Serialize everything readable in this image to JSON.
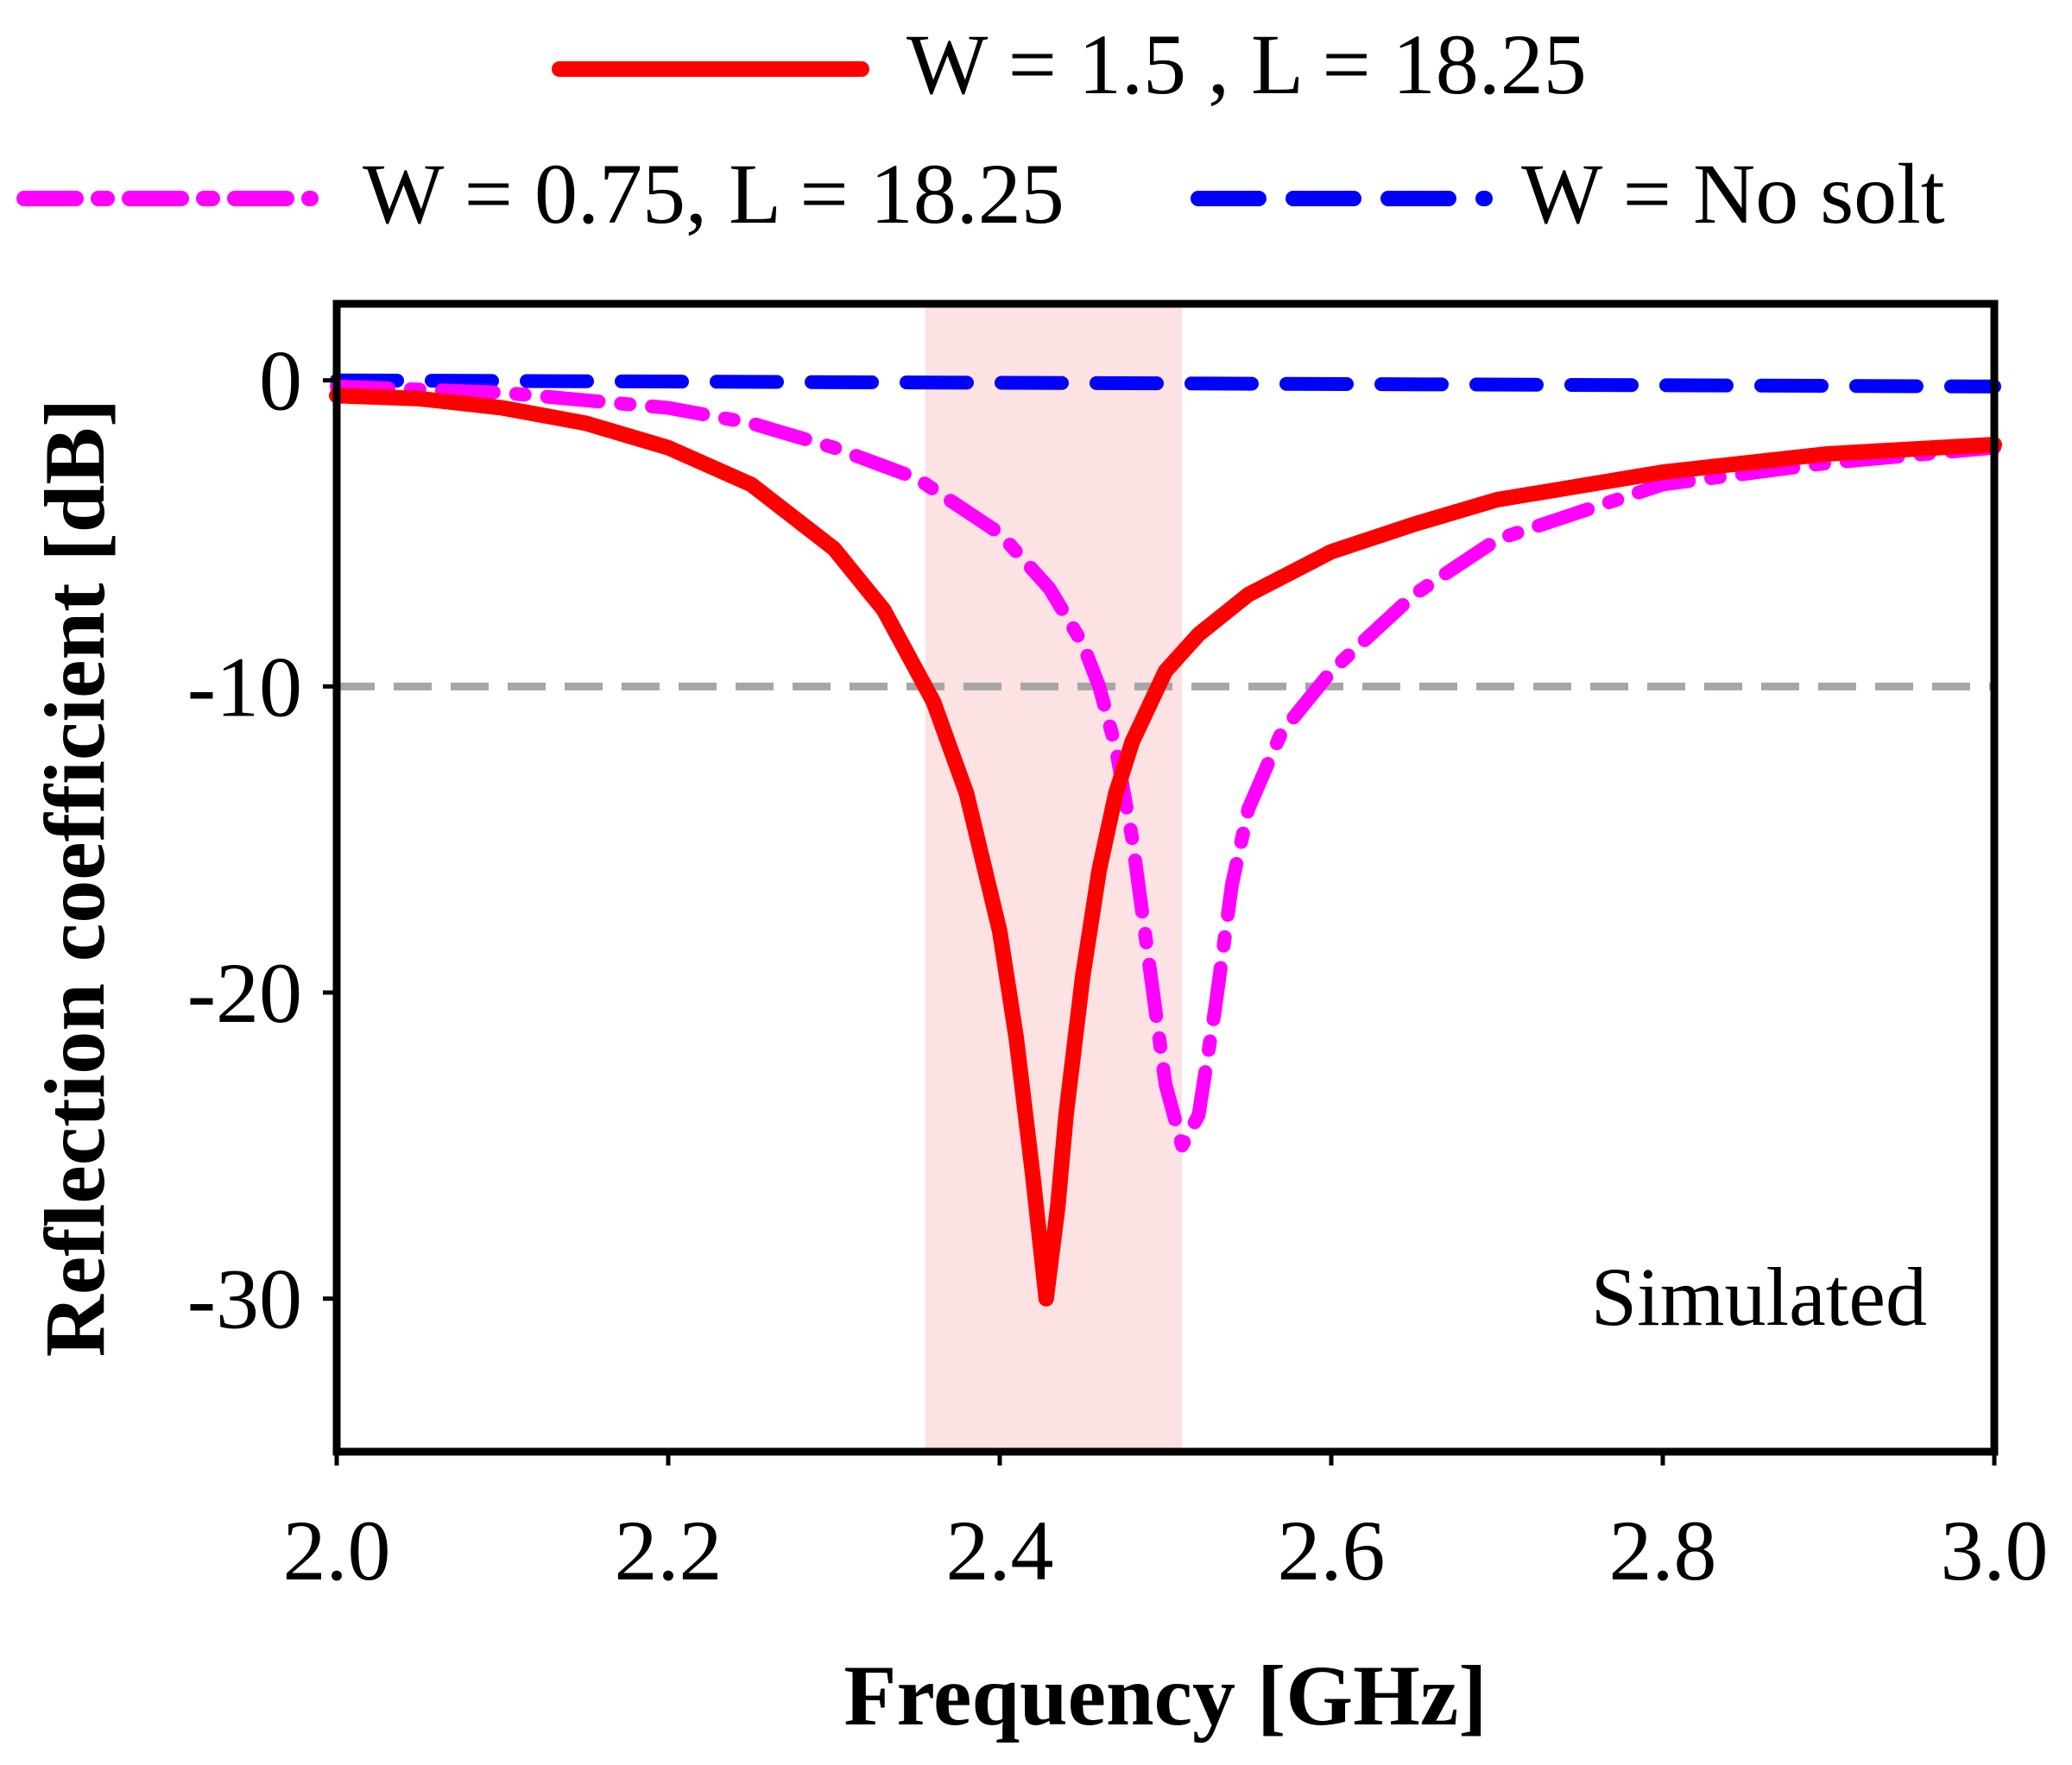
{
  "chart_data": {
    "type": "line",
    "title": "",
    "xlabel": "Frequency [GHz]",
    "ylabel": "Reflection coefficient [dB]",
    "xlim": [
      2.0,
      3.0
    ],
    "ylim": [
      -35,
      2.5
    ],
    "xticks": [
      "2.0",
      "2.2",
      "2.4",
      "2.6",
      "2.8",
      "3.0"
    ],
    "yticks": [
      "0",
      "-10",
      "-20",
      "-30"
    ],
    "grid": false,
    "legend_position": "top",
    "annotation": "Simulated",
    "reference_line": {
      "y": -10,
      "color": "#a6a6a6",
      "style": "dashed"
    },
    "highlight_band": {
      "x_start": 2.355,
      "x_end": 2.51,
      "color": "#fce2e2"
    },
    "series": [
      {
        "name": "W = 1.5 , L = 18.25",
        "color": "#ff0000",
        "style": "solid",
        "x": [
          2.0,
          2.05,
          2.1,
          2.15,
          2.2,
          2.25,
          2.3,
          2.33,
          2.36,
          2.38,
          2.4,
          2.41,
          2.42,
          2.428,
          2.435,
          2.44,
          2.45,
          2.46,
          2.47,
          2.48,
          2.5,
          2.52,
          2.55,
          2.6,
          2.65,
          2.7,
          2.8,
          2.9,
          3.0
        ],
        "y": [
          -0.5,
          -0.6,
          -0.9,
          -1.4,
          -2.2,
          -3.4,
          -5.5,
          -7.5,
          -10.5,
          -13.5,
          -18.0,
          -21.5,
          -26.0,
          -30.0,
          -27.0,
          -24.0,
          -19.5,
          -16.0,
          -13.5,
          -11.8,
          -9.5,
          -8.3,
          -7.0,
          -5.6,
          -4.7,
          -3.9,
          -3.0,
          -2.4,
          -2.1
        ]
      },
      {
        "name": "W = 0.75, L = 18.25",
        "color": "#ff00ff",
        "style": "dashdot",
        "x": [
          2.0,
          2.1,
          2.2,
          2.25,
          2.3,
          2.35,
          2.4,
          2.43,
          2.45,
          2.46,
          2.47,
          2.48,
          2.49,
          2.5,
          2.51,
          2.52,
          2.53,
          2.54,
          2.55,
          2.57,
          2.6,
          2.65,
          2.7,
          2.8,
          2.9,
          3.0
        ],
        "y": [
          -0.2,
          -0.4,
          -0.9,
          -1.4,
          -2.2,
          -3.2,
          -5.0,
          -6.8,
          -8.6,
          -10.0,
          -12.0,
          -15.0,
          -19.0,
          -23.0,
          -25.0,
          -24.0,
          -20.5,
          -16.5,
          -14.0,
          -11.5,
          -9.5,
          -7.0,
          -5.2,
          -3.4,
          -2.7,
          -2.2
        ]
      },
      {
        "name": "W = No solt",
        "color": "#0000ff",
        "style": "dashed",
        "x": [
          2.0,
          2.5,
          3.0
        ],
        "y": [
          0.0,
          -0.1,
          -0.2
        ]
      }
    ]
  }
}
